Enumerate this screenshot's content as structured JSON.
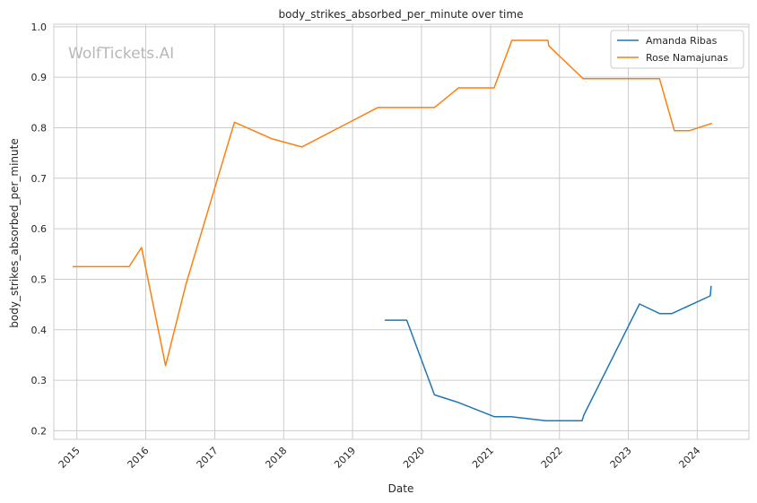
{
  "chart_data": {
    "type": "line",
    "title": "body_strikes_absorbed_per_minute over time",
    "xlabel": "Date",
    "ylabel": "body_strikes_absorbed_per_minute",
    "watermark": "WolfTickets.AI",
    "xlim": [
      "2014-09-01",
      "2024-10-01"
    ],
    "ylim": [
      0.183,
      1.005
    ],
    "x_ticks": [
      "2015",
      "2016",
      "2017",
      "2018",
      "2019",
      "2020",
      "2021",
      "2022",
      "2023",
      "2024"
    ],
    "y_ticks": [
      "0.2",
      "0.3",
      "0.4",
      "0.5",
      "0.6",
      "0.7",
      "0.8",
      "0.9",
      "1.0"
    ],
    "grid": true,
    "legend_position": "top-right",
    "series": [
      {
        "name": "Amanda Ribas",
        "color": "#1f77b4",
        "points": [
          {
            "x": "2019-06-20",
            "y": 0.419
          },
          {
            "x": "2019-10-15",
            "y": 0.419
          },
          {
            "x": "2020-03-10",
            "y": 0.271
          },
          {
            "x": "2020-07-15",
            "y": 0.256
          },
          {
            "x": "2021-01-20",
            "y": 0.228
          },
          {
            "x": "2021-04-20",
            "y": 0.228
          },
          {
            "x": "2021-10-20",
            "y": 0.22
          },
          {
            "x": "2022-05-01",
            "y": 0.22
          },
          {
            "x": "2022-05-10",
            "y": 0.231
          },
          {
            "x": "2023-03-01",
            "y": 0.451
          },
          {
            "x": "2023-06-15",
            "y": 0.432
          },
          {
            "x": "2023-08-20",
            "y": 0.432
          },
          {
            "x": "2024-03-10",
            "y": 0.467
          },
          {
            "x": "2024-03-15",
            "y": 0.487
          }
        ]
      },
      {
        "name": "Rose Namajunas",
        "color": "#ff7f0e",
        "points": [
          {
            "x": "2014-12-10",
            "y": 0.525
          },
          {
            "x": "2015-10-05",
            "y": 0.525
          },
          {
            "x": "2015-12-10",
            "y": 0.563
          },
          {
            "x": "2016-04-15",
            "y": 0.329
          },
          {
            "x": "2016-08-01",
            "y": 0.49
          },
          {
            "x": "2017-04-15",
            "y": 0.811
          },
          {
            "x": "2017-11-01",
            "y": 0.778
          },
          {
            "x": "2018-04-07",
            "y": 0.762
          },
          {
            "x": "2019-05-15",
            "y": 0.84
          },
          {
            "x": "2020-03-10",
            "y": 0.84
          },
          {
            "x": "2020-07-15",
            "y": 0.879
          },
          {
            "x": "2021-01-20",
            "y": 0.879
          },
          {
            "x": "2021-04-24",
            "y": 0.973
          },
          {
            "x": "2021-11-01",
            "y": 0.973
          },
          {
            "x": "2021-11-06",
            "y": 0.962
          },
          {
            "x": "2022-05-07",
            "y": 0.897
          },
          {
            "x": "2023-06-15",
            "y": 0.897
          },
          {
            "x": "2023-09-02",
            "y": 0.794
          },
          {
            "x": "2023-11-20",
            "y": 0.794
          },
          {
            "x": "2024-03-20",
            "y": 0.809
          }
        ]
      }
    ]
  }
}
